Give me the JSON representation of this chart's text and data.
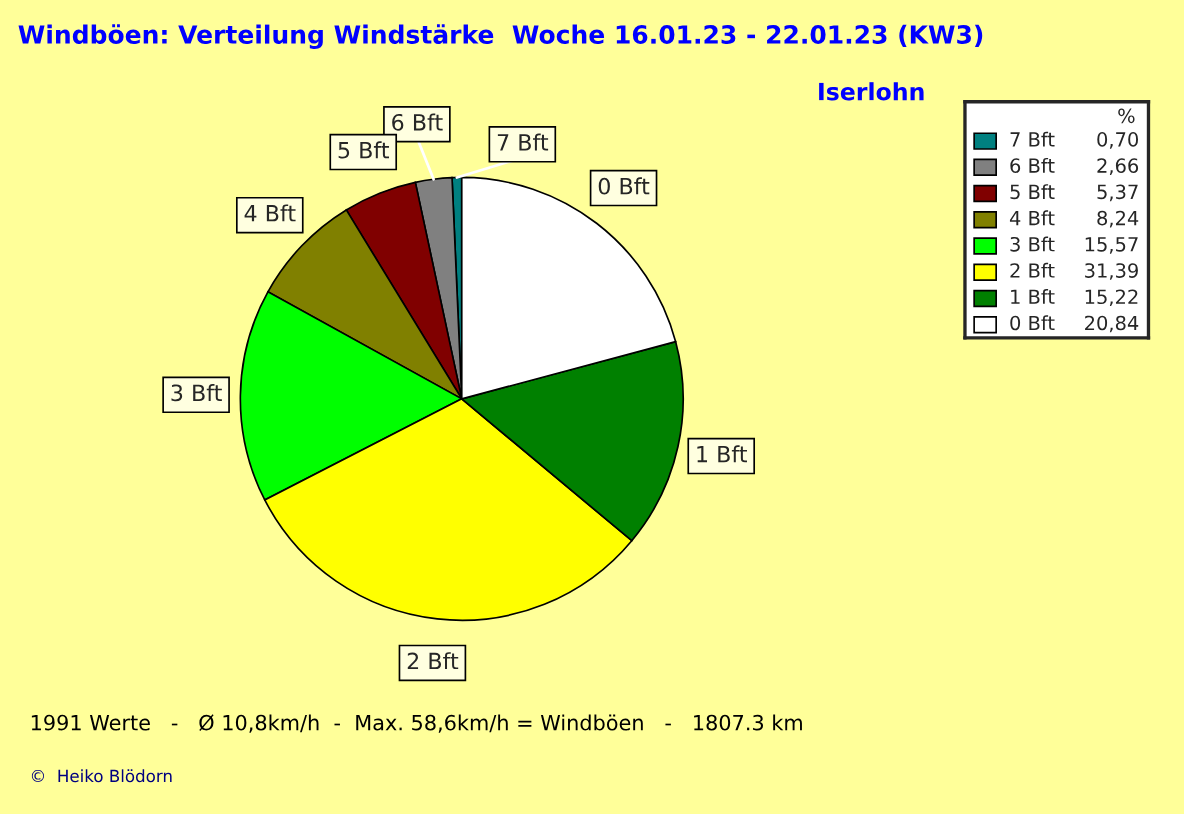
{
  "chart_data": {
    "type": "pie",
    "title": "Windböen: Verteilung Windstärke  Woche 16.01.23 - 22.01.23 (KW3)",
    "subtitle": "Iserlohn",
    "categories": [
      "7 Bft",
      "6 Bft",
      "5 Bft",
      "4 Bft",
      "3 Bft",
      "2 Bft",
      "1 Bft",
      "0 Bft"
    ],
    "values": [
      0.7,
      2.66,
      5.37,
      8.24,
      15.57,
      31.39,
      15.22,
      20.84
    ],
    "value_labels": [
      "0,70",
      "2,66",
      "5,37",
      "8,24",
      "15,57",
      "31,39",
      "15,22",
      "20,84"
    ],
    "colors": [
      "#008080",
      "#808080",
      "#800000",
      "#808000",
      "#00ff00",
      "#ffff00",
      "#008000",
      "#ffffff"
    ],
    "legend_title": "%",
    "legend": "right",
    "annotations": [
      "1991 Werte   -   Ø 10,8km/h  -  Max. 58,6km/h = Windböen   -   1807.3 km",
      "©  Heiko Blödorn"
    ]
  }
}
